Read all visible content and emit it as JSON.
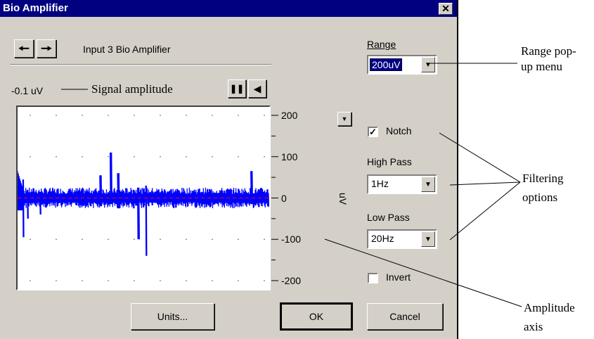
{
  "window": {
    "title": "Bio Amplifier",
    "close_glyph": "✕"
  },
  "input_label": "Input 3 Bio Amplifier",
  "nav": {
    "prev_icon": "left-arrow-icon",
    "next_icon": "right-arrow-icon"
  },
  "signal_value": "-0.1 uV",
  "playback": {
    "pause_icon": "pause-icon",
    "scroll_icon": "scroll-left-icon"
  },
  "range": {
    "label": "Range",
    "value": "200uV"
  },
  "notch": {
    "label": "Notch",
    "checked": true
  },
  "high_pass": {
    "label": "High Pass",
    "value": "1Hz"
  },
  "low_pass": {
    "label": "Low Pass",
    "value": "20Hz"
  },
  "invert": {
    "label": "Invert",
    "checked": false
  },
  "axis": {
    "unit": "uV",
    "ticks": [
      "200",
      "100",
      "0",
      "-100",
      "-200"
    ]
  },
  "buttons": {
    "units": "Units...",
    "ok": "OK",
    "cancel": "Cancel"
  },
  "annotations": {
    "range_menu": "Range pop-up menu",
    "signal_amplitude": "Signal amplitude",
    "filtering": "Filtering options",
    "amplitude_axis": "Amplitude axis"
  },
  "colors": {
    "trace": "#0000ff",
    "baseline": "#ff0000",
    "titlebar": "#000080"
  },
  "chart_data": {
    "type": "line",
    "ylabel": "uV",
    "ylim": [
      -200,
      200
    ],
    "yticks": [
      200,
      100,
      0,
      -100,
      -200
    ],
    "baseline": 0,
    "spikes": [
      {
        "at": 0.02,
        "min": -95,
        "max": 45
      },
      {
        "at": 0.04,
        "min": -50,
        "max": 20
      },
      {
        "at": 0.09,
        "min": -40,
        "max": 15
      },
      {
        "at": 0.33,
        "min": -20,
        "max": 55
      },
      {
        "at": 0.37,
        "min": -15,
        "max": 110
      },
      {
        "at": 0.4,
        "min": -25,
        "max": 60
      },
      {
        "at": 0.46,
        "min": -25,
        "max": 20
      },
      {
        "at": 0.48,
        "min": -100,
        "max": 25
      },
      {
        "at": 0.51,
        "min": -140,
        "max": 30
      },
      {
        "at": 0.93,
        "min": -15,
        "max": 65
      }
    ],
    "noise_band": [
      -25,
      25
    ]
  }
}
